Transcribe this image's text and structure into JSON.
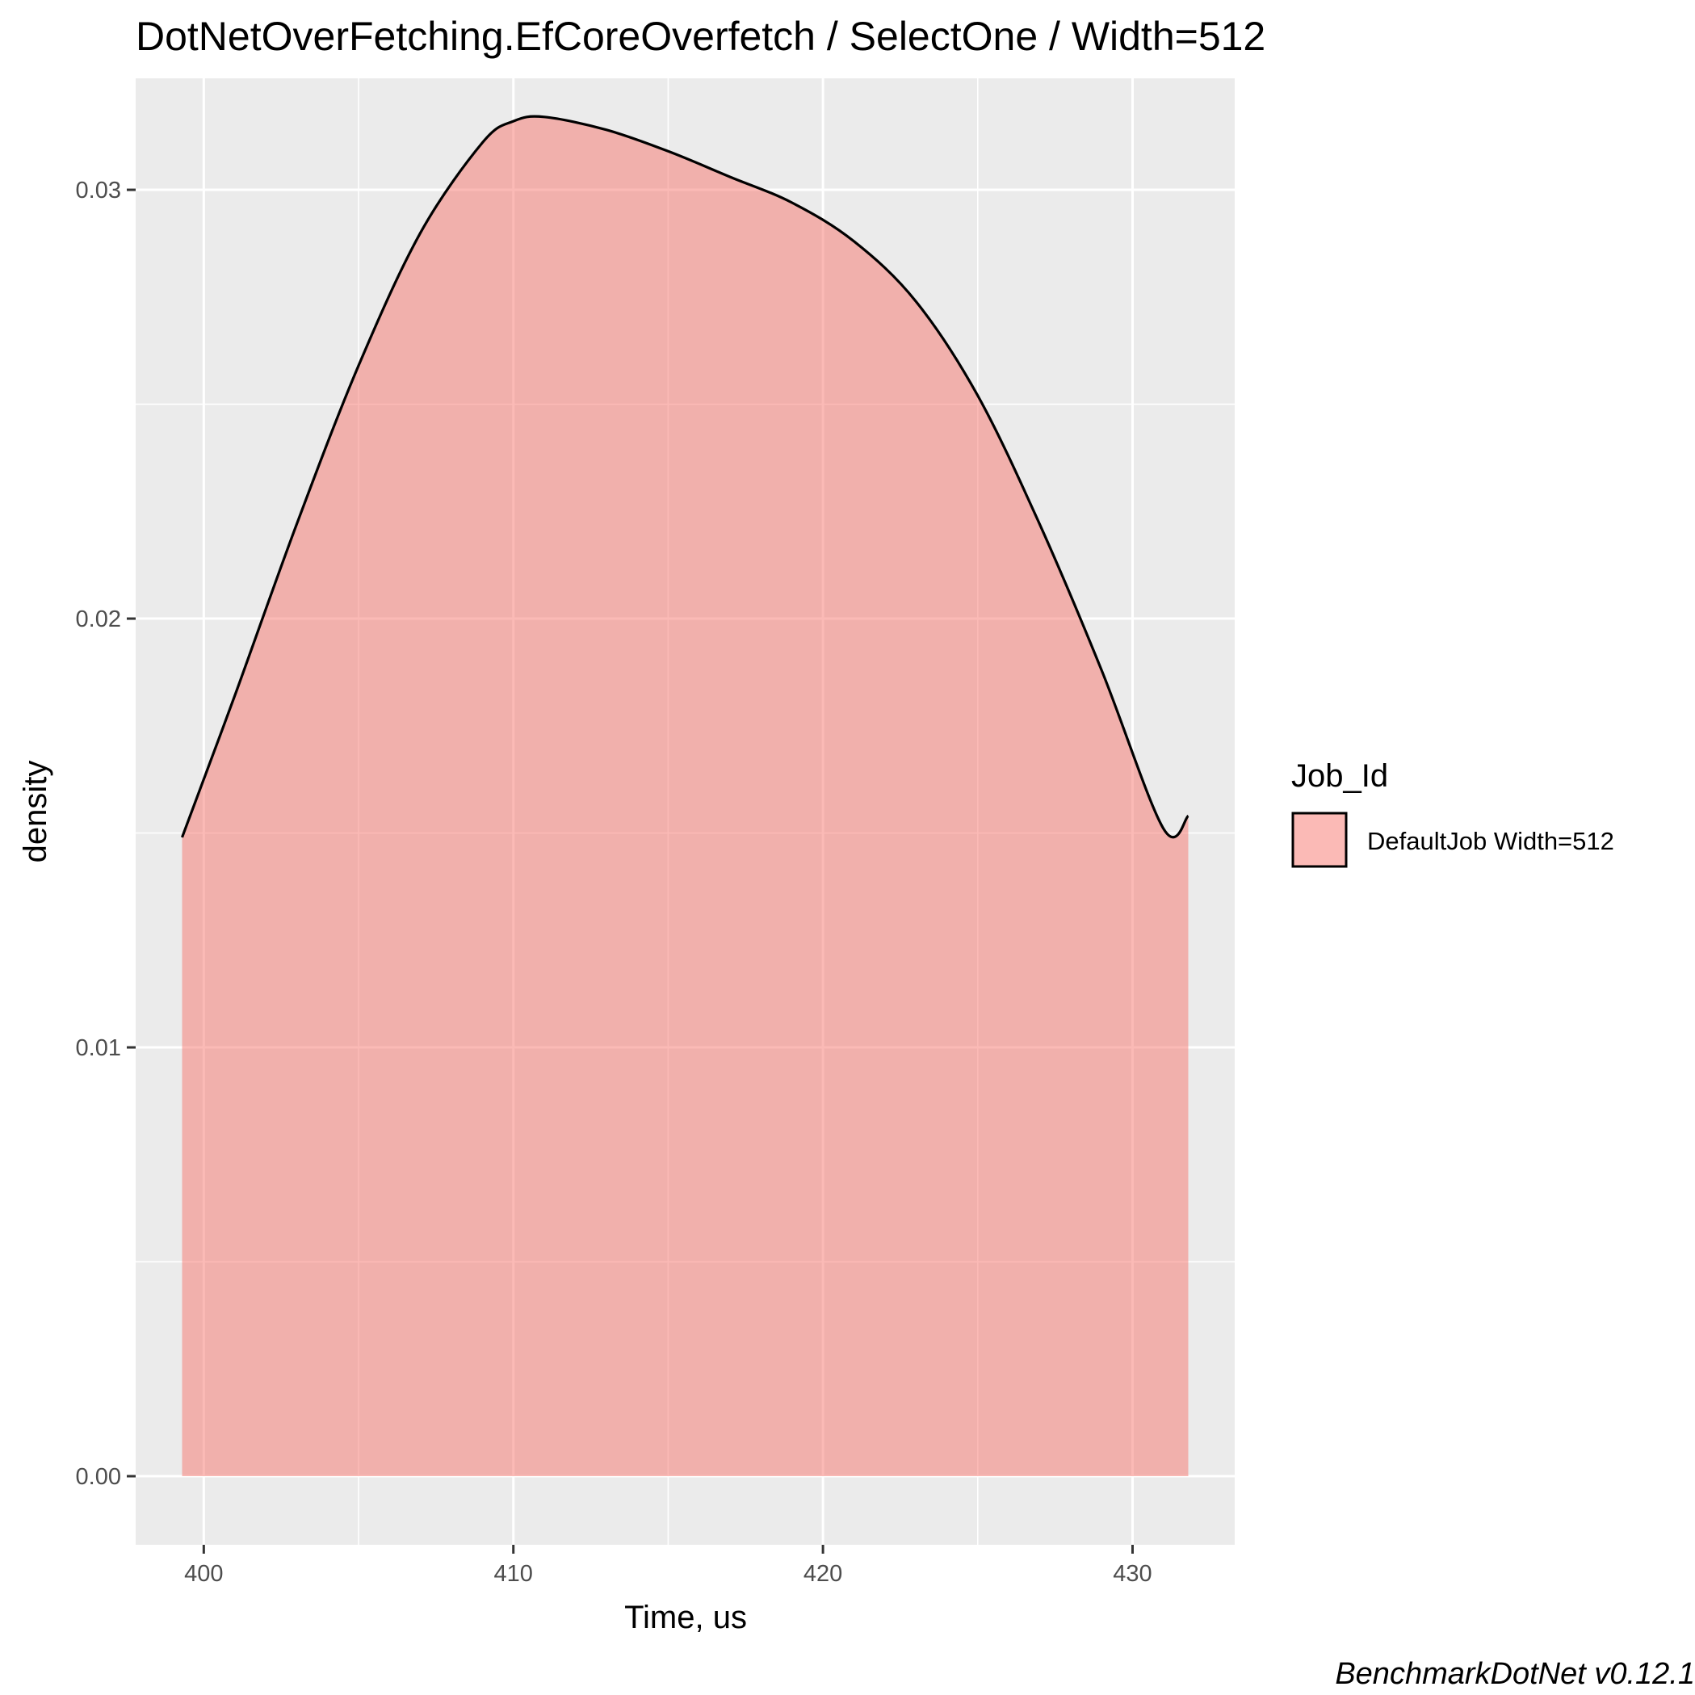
{
  "chart_data": {
    "type": "area",
    "title": "DotNetOverFetching.EfCoreOverfetch / SelectOne / Width=512",
    "xlabel": "Time, us",
    "ylabel": "density",
    "caption": "BenchmarkDotNet v0.12.1",
    "xlim": [
      397.8,
      433.3
    ],
    "ylim": [
      -0.0016,
      0.0326
    ],
    "x_ticks": [
      400,
      410,
      420,
      430
    ],
    "x_tick_labels": [
      "400",
      "410",
      "420",
      "430"
    ],
    "y_ticks": [
      0.0,
      0.01,
      0.02,
      0.03
    ],
    "y_tick_labels": [
      "0.00",
      "0.01",
      "0.02",
      "0.03"
    ],
    "grid": true,
    "legend_position": "right",
    "legend": {
      "title": "Job_Id",
      "entries": [
        {
          "label": "DefaultJob Width=512",
          "color": "#F8766D"
        }
      ]
    },
    "series": [
      {
        "name": "DefaultJob Width=512",
        "color": "#F8766D",
        "fill_opacity": 0.5,
        "x": [
          399.3,
          401.0,
          403.0,
          405.0,
          407.0,
          409.0,
          410.0,
          411.0,
          413.0,
          415.0,
          417.0,
          419.0,
          421.0,
          423.0,
          425.0,
          427.0,
          429.0,
          431.0,
          431.8
        ],
        "y": [
          0.0149,
          0.0182,
          0.0222,
          0.0259,
          0.029,
          0.0311,
          0.0316,
          0.0317,
          0.0314,
          0.0309,
          0.0303,
          0.0297,
          0.0288,
          0.0274,
          0.0252,
          0.0222,
          0.0188,
          0.0151,
          0.0154
        ]
      }
    ]
  }
}
